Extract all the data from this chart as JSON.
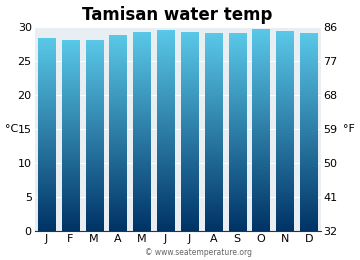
{
  "title": "Tamisan water temp",
  "months": [
    "J",
    "F",
    "M",
    "A",
    "M",
    "J",
    "J",
    "A",
    "S",
    "O",
    "N",
    "D"
  ],
  "values_c": [
    28.2,
    27.9,
    27.9,
    28.6,
    29.1,
    29.4,
    29.1,
    28.9,
    28.9,
    29.5,
    29.3,
    28.9
  ],
  "ylim_c": [
    0,
    30
  ],
  "yticks_c": [
    0,
    5,
    10,
    15,
    20,
    25,
    30
  ],
  "yticks_f": [
    32,
    41,
    50,
    59,
    68,
    77,
    86
  ],
  "ylabel_left": "°C",
  "ylabel_right": "°F",
  "bar_color_top": "#5ac8e8",
  "bar_color_bottom": "#003366",
  "background_color": "#ffffff",
  "plot_bg_color": "#e8eef2",
  "title_fontsize": 12,
  "axis_fontsize": 8,
  "tick_fontsize": 8,
  "watermark": "© www.seatemperature.org"
}
